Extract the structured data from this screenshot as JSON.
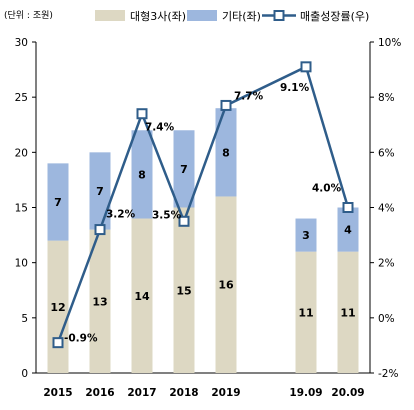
{
  "chart_data": {
    "type": "bar",
    "unit_label": "(단위 : 조원)",
    "categories": [
      "2015",
      "2016",
      "2017",
      "2018",
      "2019",
      "19.09",
      "20.09"
    ],
    "series": [
      {
        "name": "대형3사(좌)",
        "type": "stacked-bar",
        "axis": "left",
        "color": "#DDD8C3",
        "values": [
          12,
          13,
          14,
          15,
          16,
          11,
          11
        ]
      },
      {
        "name": "기타(좌)",
        "type": "stacked-bar",
        "axis": "left",
        "color": "#9DB7DE",
        "values": [
          7,
          7,
          8,
          7,
          8,
          3,
          4
        ]
      },
      {
        "name": "매출성장률(우)",
        "type": "line",
        "axis": "right",
        "color": "#2F5D8A",
        "values": [
          -0.9,
          3.2,
          7.4,
          3.5,
          7.7,
          9.1,
          4.0
        ],
        "labels": [
          "-0.9%",
          "3.2%",
          "7.4%",
          "3.5%",
          "7.7%",
          "9.1%",
          "4.0%"
        ]
      }
    ],
    "left_axis": {
      "min": 0,
      "max": 30,
      "ticks": [
        0,
        5,
        10,
        15,
        20,
        25,
        30
      ]
    },
    "right_axis": {
      "min": -2,
      "max": 10,
      "ticks": [
        "-2%",
        "0%",
        "2%",
        "4%",
        "6%",
        "8%",
        "10%"
      ]
    },
    "legend_position": "top",
    "grid": false
  }
}
